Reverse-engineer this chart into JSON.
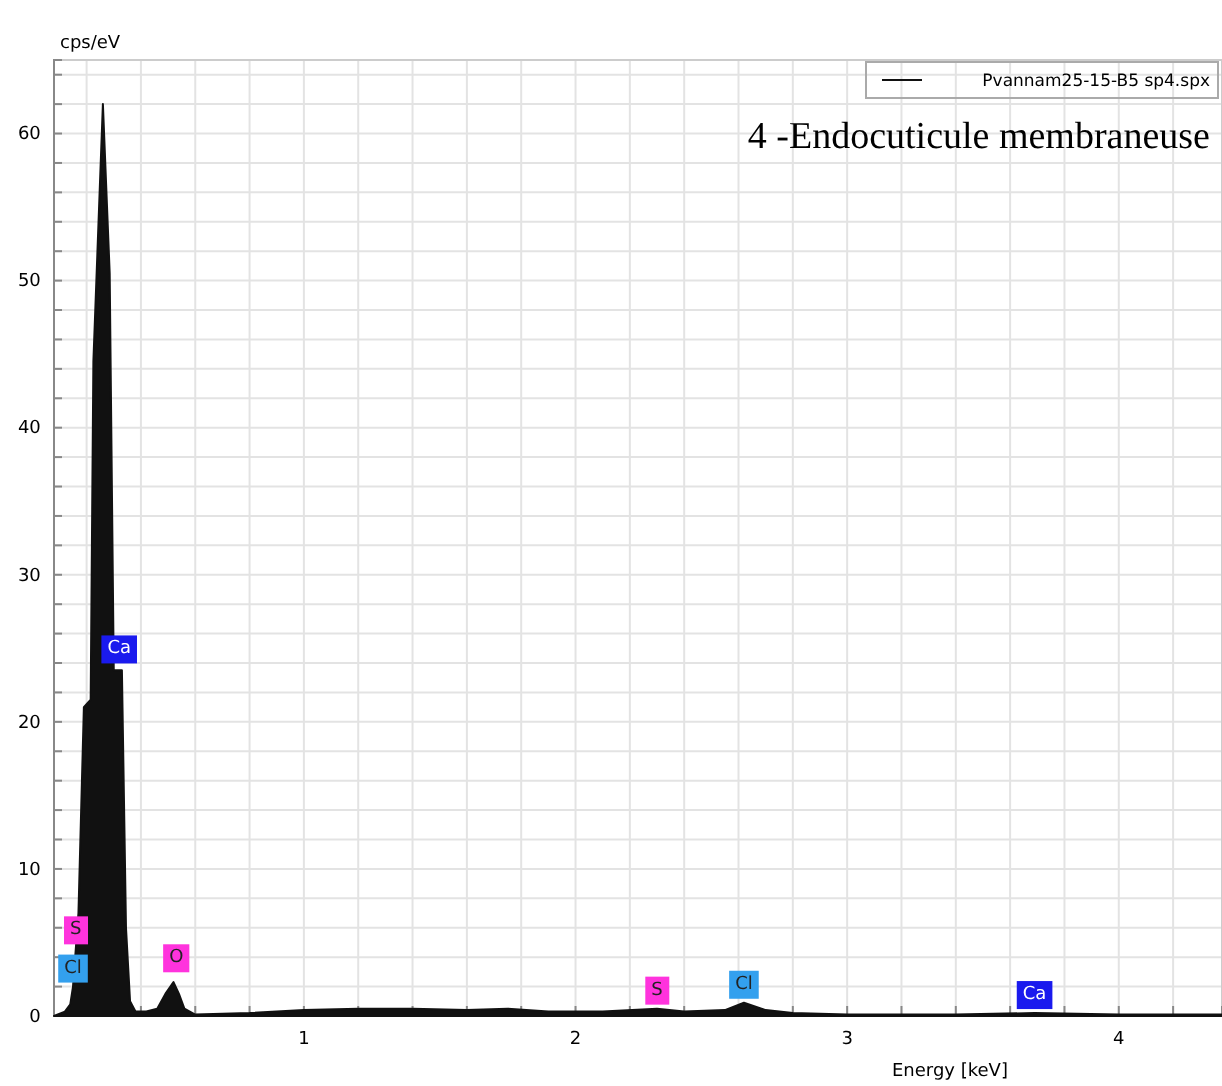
{
  "chart_data": {
    "type": "area",
    "title": "4 -Endocuticule membraneuse",
    "xlabel": "Energy [keV]",
    "ylabel": "cps/eV",
    "x": [
      0.08,
      0.12,
      0.14,
      0.15,
      0.17,
      0.19,
      0.215,
      0.225,
      0.26,
      0.285,
      0.3,
      0.33,
      0.345,
      0.36,
      0.38,
      0.42,
      0.46,
      0.49,
      0.52,
      0.54,
      0.56,
      0.6,
      0.8,
      1.0,
      1.2,
      1.4,
      1.6,
      1.75,
      1.9,
      2.1,
      2.3,
      2.4,
      2.55,
      2.62,
      2.7,
      2.8,
      3.0,
      3.4,
      3.69,
      4.0,
      4.38
    ],
    "series": [
      {
        "name": "Pvannam25-15-B5 sp4.spx",
        "color": "#111111",
        "values": [
          0,
          0.3,
          0.8,
          2,
          7,
          21,
          21.5,
          44.5,
          62,
          50.5,
          23.5,
          23.5,
          6,
          1,
          0.3,
          0.3,
          0.5,
          1.5,
          2.3,
          1.5,
          0.5,
          0.1,
          0.2,
          0.4,
          0.5,
          0.5,
          0.4,
          0.5,
          0.3,
          0.3,
          0.5,
          0.3,
          0.4,
          0.9,
          0.4,
          0.2,
          0.1,
          0.1,
          0.2,
          0.1,
          0.1
        ]
      }
    ],
    "xlim": [
      0.08,
      4.38
    ],
    "ylim": [
      0,
      65
    ],
    "xticks": [
      {
        "value": 0.2,
        "label": null
      },
      {
        "value": 0.4,
        "label": null
      },
      {
        "value": 0.6,
        "label": null
      },
      {
        "value": 0.8,
        "label": null
      },
      1,
      {
        "value": 1.2,
        "label": null
      },
      {
        "value": 1.4,
        "label": null
      },
      {
        "value": 1.6,
        "label": null
      },
      {
        "value": 1.8,
        "label": null
      },
      2,
      {
        "value": 2.2,
        "label": null
      },
      {
        "value": 2.4,
        "label": null
      },
      {
        "value": 2.6,
        "label": null
      },
      {
        "value": 2.8,
        "label": null
      },
      3,
      {
        "value": 3.2,
        "label": null
      },
      {
        "value": 3.4,
        "label": null
      },
      {
        "value": 3.6,
        "label": null
      },
      {
        "value": 3.8,
        "label": null
      },
      4,
      {
        "value": 4.2,
        "label": null
      }
    ],
    "yticks": [
      0,
      {
        "value": 2,
        "label": null
      },
      {
        "value": 4,
        "label": null
      },
      {
        "value": 6,
        "label": null
      },
      {
        "value": 8,
        "label": null
      },
      10,
      {
        "value": 12,
        "label": null
      },
      {
        "value": 14,
        "label": null
      },
      {
        "value": 16,
        "label": null
      },
      {
        "value": 18,
        "label": null
      },
      20,
      {
        "value": 22,
        "label": null
      },
      {
        "value": 24,
        "label": null
      },
      {
        "value": 26,
        "label": null
      },
      {
        "value": 28,
        "label": null
      },
      30,
      {
        "value": 32,
        "label": null
      },
      {
        "value": 34,
        "label": null
      },
      {
        "value": 36,
        "label": null
      },
      {
        "value": 38,
        "label": null
      },
      40,
      {
        "value": 42,
        "label": null
      },
      {
        "value": 44,
        "label": null
      },
      {
        "value": 46,
        "label": null
      },
      {
        "value": 48,
        "label": null
      },
      50,
      {
        "value": 52,
        "label": null
      },
      {
        "value": 54,
        "label": null
      },
      {
        "value": 56,
        "label": null
      },
      {
        "value": 58,
        "label": null
      },
      60,
      {
        "value": 62,
        "label": null
      },
      {
        "value": 64,
        "label": null
      }
    ],
    "grid": true,
    "legend": "top right",
    "annotations": [
      {
        "text": "S",
        "x": 0.16,
        "y": 4.6
      },
      {
        "text": "Cl",
        "x": 0.15,
        "y": 2
      },
      {
        "text": "Ca",
        "x": 0.32,
        "y": 23.7
      },
      {
        "text": "O",
        "x": 0.53,
        "y": 2.7
      },
      {
        "text": "S",
        "x": 2.3,
        "y": 0.5
      },
      {
        "text": "Cl",
        "x": 2.62,
        "y": 0.9
      },
      {
        "text": "Ca",
        "x": 3.69,
        "y": 0.2
      }
    ]
  }
}
